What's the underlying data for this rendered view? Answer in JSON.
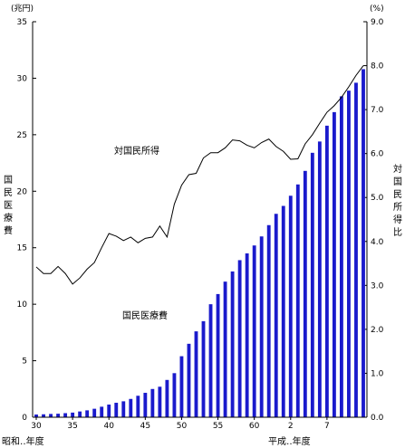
{
  "chart_data": {
    "type": "bar",
    "y_unit_left": "(兆円)",
    "y_unit_right": "(%)",
    "ylabel_left": "国民医療費",
    "ylabel_right": "対国民所得比",
    "xlabel_showa": "昭和‥年度",
    "xlabel_heisei": "平成‥年度",
    "annotation_line": "対国民所得",
    "annotation_bar": "国民医療費",
    "left_axis": {
      "min": 0,
      "max": 35,
      "ticks": [
        "0",
        "5",
        "10",
        "15",
        "20",
        "25",
        "30",
        "35"
      ]
    },
    "right_axis": {
      "min": 0,
      "max": 9,
      "ticks": [
        "0.0",
        "1.0",
        "2.0",
        "3.0",
        "4.0",
        "5.0",
        "6.0",
        "7.0",
        "8.0",
        "9.0"
      ]
    },
    "x_ticks": [
      {
        "label": "30",
        "index": 0
      },
      {
        "label": "35",
        "index": 5
      },
      {
        "label": "40",
        "index": 10
      },
      {
        "label": "45",
        "index": 15
      },
      {
        "label": "50",
        "index": 20
      },
      {
        "label": "55",
        "index": 25
      },
      {
        "label": "60",
        "index": 30
      },
      {
        "label": "2",
        "index": 35
      },
      {
        "label": "7",
        "index": 40
      }
    ],
    "series": [
      {
        "name": "国民医療費",
        "type": "bar",
        "axis": "left",
        "color": "#1a1acc",
        "values": [
          0.24,
          0.26,
          0.29,
          0.31,
          0.36,
          0.41,
          0.51,
          0.61,
          0.75,
          0.93,
          1.12,
          1.28,
          1.41,
          1.62,
          1.9,
          2.16,
          2.5,
          2.7,
          3.3,
          3.9,
          5.4,
          6.5,
          7.6,
          8.5,
          10.0,
          10.9,
          12.0,
          12.9,
          13.9,
          14.5,
          15.2,
          16.0,
          17.0,
          18.0,
          18.7,
          19.6,
          20.6,
          21.8,
          23.4,
          24.4,
          25.8,
          27.0,
          28.4,
          28.9,
          29.6,
          30.8
        ]
      },
      {
        "name": "対国民所得",
        "type": "line",
        "axis": "right",
        "color": "#000000",
        "values": [
          3.42,
          3.27,
          3.27,
          3.43,
          3.27,
          3.03,
          3.17,
          3.37,
          3.52,
          3.86,
          4.18,
          4.12,
          4.02,
          4.1,
          3.97,
          4.07,
          4.1,
          4.35,
          4.1,
          4.85,
          5.28,
          5.52,
          5.55,
          5.9,
          6.02,
          6.02,
          6.13,
          6.31,
          6.29,
          6.19,
          6.13,
          6.25,
          6.33,
          6.16,
          6.05,
          5.87,
          5.88,
          6.22,
          6.43,
          6.69,
          6.94,
          7.09,
          7.28,
          7.52,
          7.78,
          8.0
        ]
      }
    ]
  }
}
